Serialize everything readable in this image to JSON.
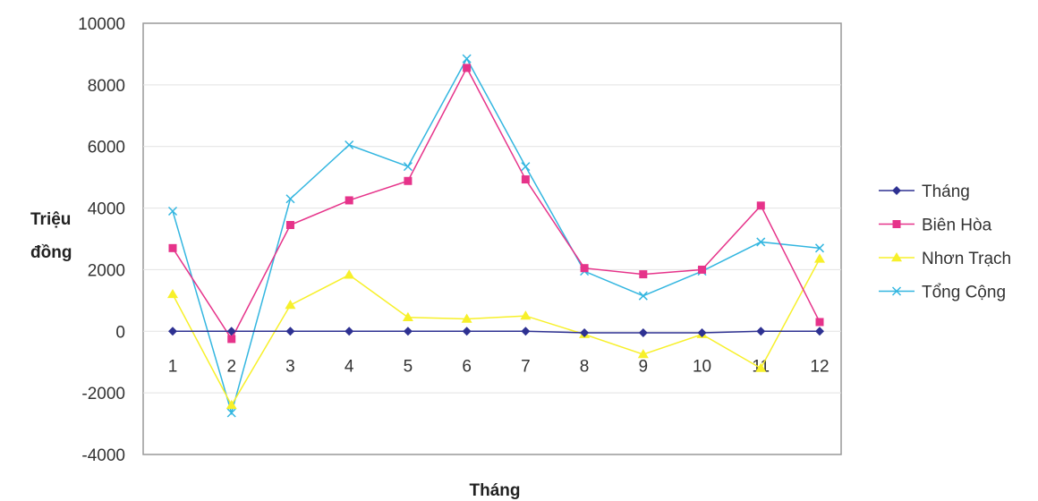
{
  "chart_data": {
    "type": "line",
    "xlabel": "Tháng",
    "ylabel_lines": [
      "Triệu",
      "đồng"
    ],
    "categories": [
      "1",
      "2",
      "3",
      "4",
      "5",
      "6",
      "7",
      "8",
      "9",
      "10",
      "11",
      "12"
    ],
    "ylim": [
      -4000,
      10000
    ],
    "yticks": [
      -4000,
      -2000,
      0,
      2000,
      4000,
      6000,
      8000,
      10000
    ],
    "grid": true,
    "legend_position": "right",
    "series": [
      {
        "name": "Tháng",
        "color": "#2e3192",
        "marker": "diamond",
        "values": [
          0,
          0,
          0,
          0,
          0,
          0,
          0,
          -50,
          -50,
          -50,
          0,
          0
        ]
      },
      {
        "name": "Biên Hòa",
        "color": "#e6338a",
        "marker": "square",
        "values": [
          2700,
          -250,
          3450,
          4250,
          4880,
          8550,
          4930,
          2050,
          1850,
          2000,
          4080,
          300
        ]
      },
      {
        "name": "Nhơn Trạch",
        "color": "#f7f02a",
        "marker": "triangle",
        "values": [
          1200,
          -2400,
          850,
          1830,
          450,
          400,
          500,
          -100,
          -750,
          -100,
          -1200,
          2350
        ]
      },
      {
        "name": "Tổng Cộng",
        "color": "#33b6e0",
        "marker": "x",
        "values": [
          3900,
          -2650,
          4300,
          6050,
          5350,
          8850,
          5350,
          1950,
          1150,
          1950,
          2900,
          2700
        ]
      }
    ]
  }
}
